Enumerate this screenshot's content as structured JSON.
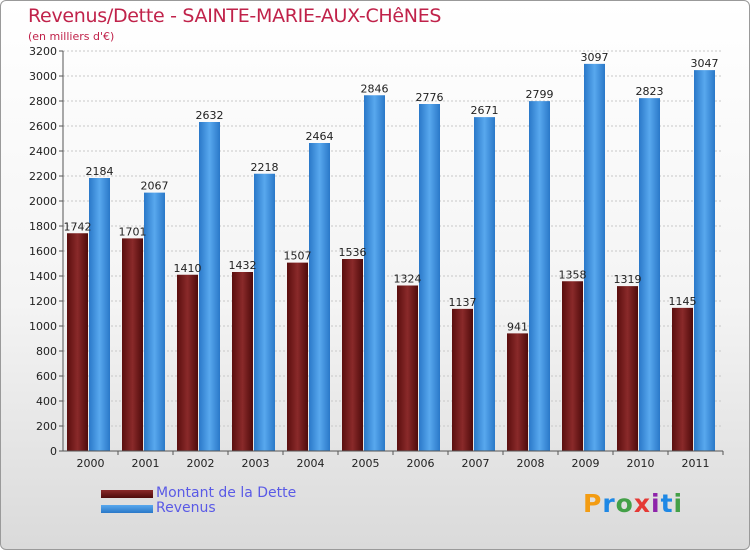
{
  "title": "Revenus/Dette - SAINTE-MARIE-AUX-CHêNES",
  "subtitle": "(en milliers d'€)",
  "logo": {
    "text": "Proxiti",
    "letters": [
      {
        "ch": "P",
        "color": "#f39c12"
      },
      {
        "ch": "r",
        "color": "#1e88e5"
      },
      {
        "ch": "o",
        "color": "#43a047"
      },
      {
        "ch": "x",
        "color": "#e53935"
      },
      {
        "ch": "i",
        "color": "#8e24aa"
      },
      {
        "ch": "t",
        "color": "#1e88e5"
      },
      {
        "ch": "i",
        "color": "#43a047"
      }
    ]
  },
  "colors": {
    "debt": "#6b1515",
    "revenue": "#2f7fd0",
    "title": "#c0224a",
    "legend_text": "#5a5ae6"
  },
  "chart_data": {
    "type": "bar",
    "title": "Revenus/Dette - SAINTE-MARIE-AUX-CHêNES",
    "ylabel": "(en milliers d'€)",
    "xlabel": "",
    "categories": [
      "2000",
      "2001",
      "2002",
      "2003",
      "2004",
      "2005",
      "2006",
      "2007",
      "2008",
      "2009",
      "2010",
      "2011"
    ],
    "series": [
      {
        "name": "Montant de la Dette",
        "values": [
          1742,
          1701,
          1410,
          1432,
          1507,
          1536,
          1324,
          1137,
          941,
          1358,
          1319,
          1145
        ]
      },
      {
        "name": "Revenus",
        "values": [
          2184,
          2067,
          2632,
          2218,
          2464,
          2846,
          2776,
          2671,
          2799,
          3097,
          2823,
          3047
        ]
      }
    ],
    "ylim": [
      0,
      3200
    ],
    "yticks": [
      0,
      200,
      400,
      600,
      800,
      1000,
      1200,
      1400,
      1600,
      1800,
      2000,
      2200,
      2400,
      2600,
      2800,
      3000,
      3200
    ],
    "grid": true,
    "legend_position": "bottom-left"
  }
}
